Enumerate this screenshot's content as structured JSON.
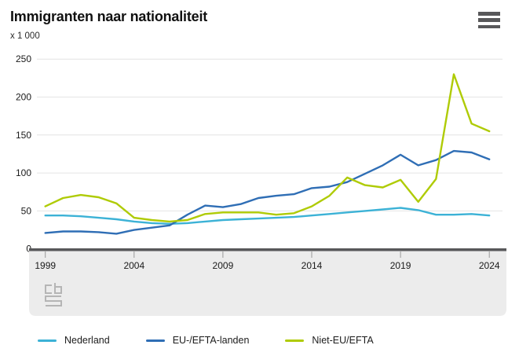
{
  "header": {
    "title": "Immigranten naar nationaliteit",
    "menu_icon": "hamburger-icon"
  },
  "branding": {
    "logo": "cbs-logo"
  },
  "chart_data": {
    "type": "line",
    "title": "Immigranten naar nationaliteit",
    "unit_label": "x 1 000",
    "xlabel": "",
    "ylabel": "x 1 000",
    "ylim": [
      0,
      250
    ],
    "grid": true,
    "legend_position": "bottom",
    "x": [
      1999,
      2000,
      2001,
      2002,
      2003,
      2004,
      2005,
      2006,
      2007,
      2008,
      2009,
      2010,
      2011,
      2012,
      2013,
      2014,
      2015,
      2016,
      2017,
      2018,
      2019,
      2020,
      2021,
      2022,
      2023,
      2024
    ],
    "xticks": [
      "1999",
      "2004",
      "2009",
      "2014",
      "2019",
      "2024"
    ],
    "yticks": [
      0,
      50,
      100,
      150,
      200,
      250
    ],
    "series": [
      {
        "name": "Nederland",
        "color": "#3cb2d6",
        "values": [
          44,
          44,
          43,
          41,
          39,
          36,
          34,
          33,
          34,
          36,
          38,
          39,
          40,
          41,
          42,
          44,
          46,
          48,
          50,
          52,
          54,
          51,
          45,
          45,
          46,
          44
        ]
      },
      {
        "name": "EU-/EFTA-landen",
        "color": "#2f6eb5",
        "values": [
          21,
          23,
          23,
          22,
          20,
          25,
          28,
          31,
          45,
          57,
          55,
          59,
          67,
          70,
          72,
          80,
          82,
          88,
          99,
          110,
          124,
          110,
          117,
          129,
          127,
          118
        ]
      },
      {
        "name": "Niet-EU/EFTA",
        "color": "#afcb05",
        "values": [
          56,
          67,
          71,
          68,
          60,
          41,
          38,
          36,
          38,
          46,
          48,
          48,
          48,
          45,
          47,
          56,
          70,
          94,
          84,
          81,
          91,
          62,
          92,
          230,
          165,
          155
        ]
      }
    ]
  }
}
